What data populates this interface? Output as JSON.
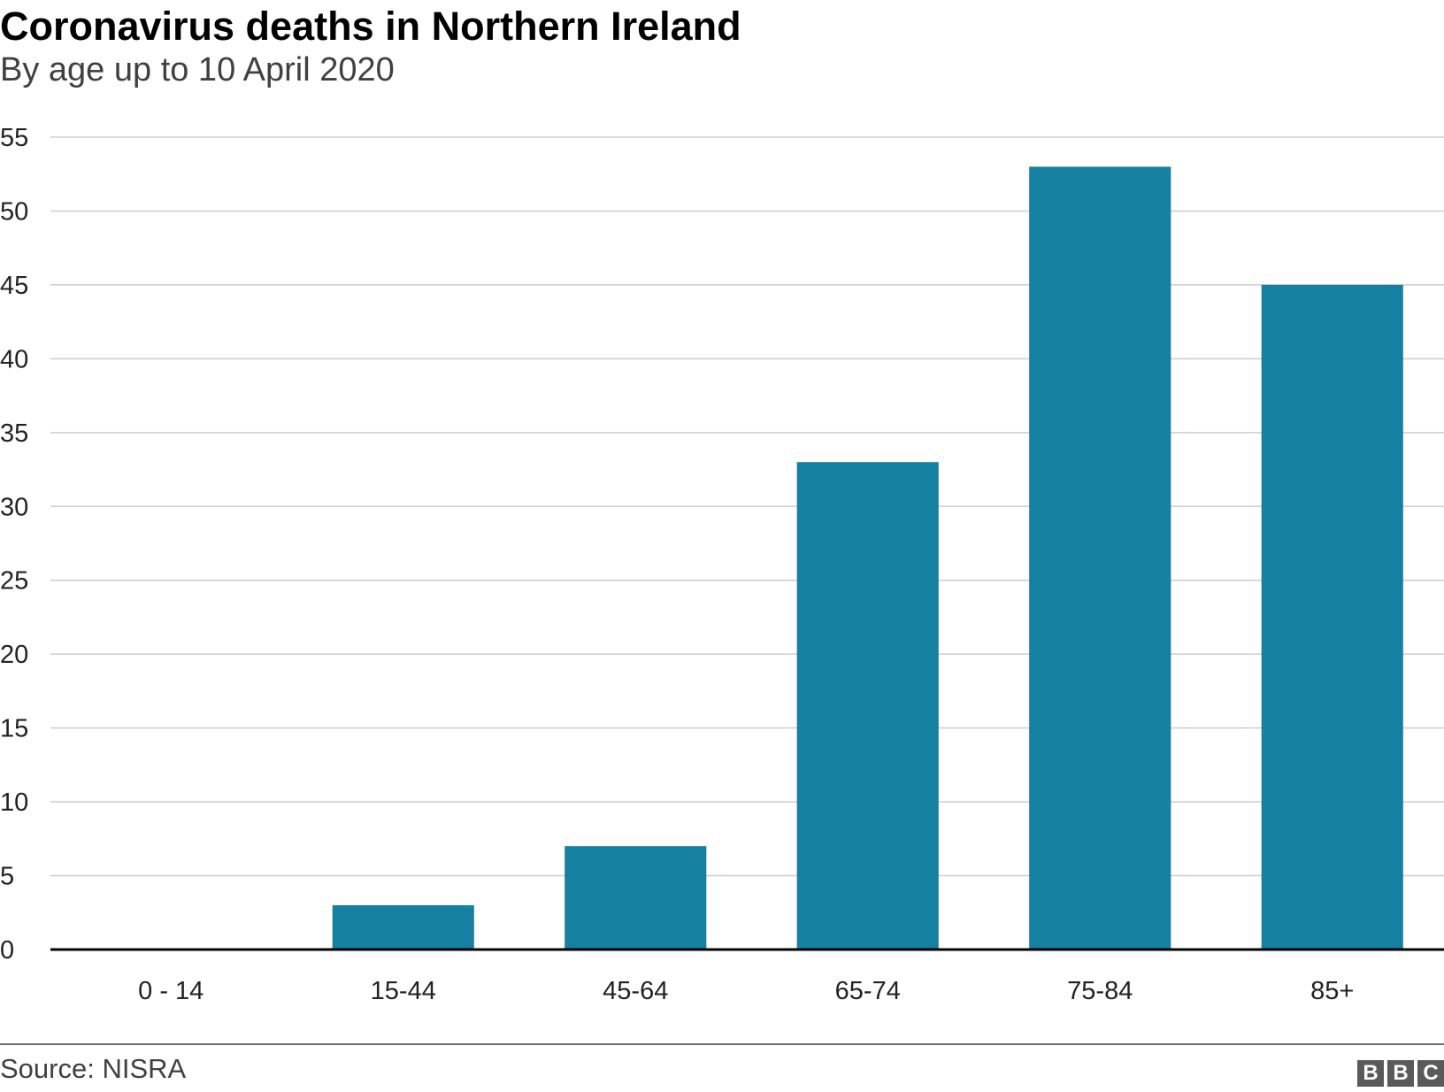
{
  "chart_data": {
    "type": "bar",
    "title": "Coronavirus deaths in Northern Ireland",
    "subtitle": "By age up to 10 April 2020",
    "xlabel": "",
    "ylabel": "",
    "categories": [
      "0 - 14",
      "15-44",
      "45-64",
      "65-74",
      "75-84",
      "85+"
    ],
    "values": [
      0,
      3,
      7,
      33,
      53,
      45
    ],
    "ylim": [
      0,
      55
    ],
    "yticks": [
      0,
      5,
      10,
      15,
      20,
      25,
      30,
      35,
      40,
      45,
      50,
      55
    ],
    "grid": true,
    "legend": "none",
    "bar_color": "#1680a3",
    "grid_color": "#cccccc",
    "axis_color": "#000000"
  },
  "footer": {
    "source": "Source: NISRA",
    "logo": [
      "B",
      "B",
      "C"
    ]
  }
}
